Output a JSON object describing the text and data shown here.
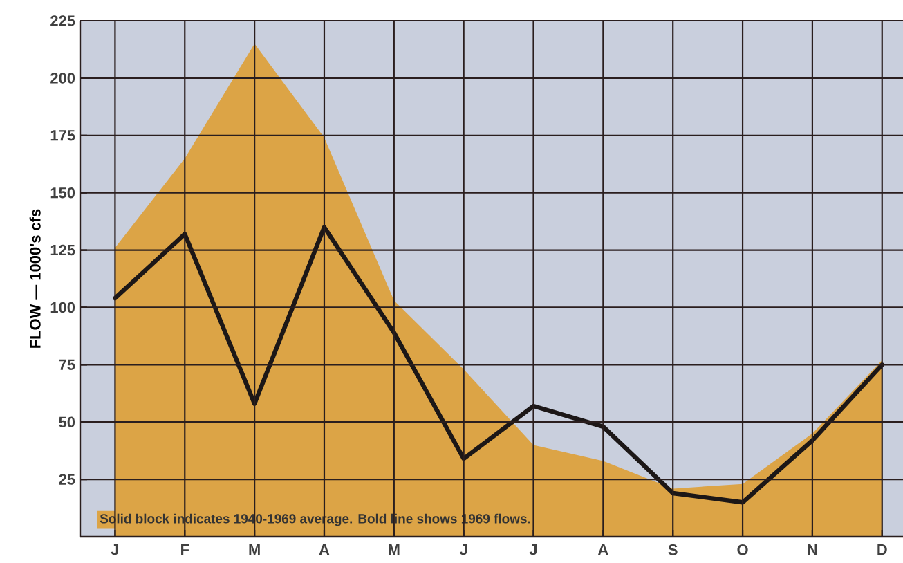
{
  "chart_data": {
    "type": "line",
    "ylabel": "FLOW — 1000's cfs",
    "annotations": [
      "Solid block indicates 1940-1969 average. Bold line shows 1969 flows."
    ],
    "categories": [
      "J",
      "F",
      "M",
      "A",
      "M",
      "J",
      "J",
      "A",
      "S",
      "O",
      "N",
      "D"
    ],
    "ylim": [
      0,
      225
    ],
    "yticks": [
      25,
      50,
      75,
      100,
      125,
      150,
      175,
      200,
      225
    ],
    "grid": true,
    "series": [
      {
        "type": "area",
        "color": "#dca446",
        "values": [
          126,
          165,
          215,
          174,
          103,
          73,
          40,
          33,
          21,
          23,
          45,
          77
        ]
      },
      {
        "color": "#1c1717",
        "values": [
          104,
          132,
          58,
          135,
          89,
          34,
          57,
          48,
          19,
          15,
          42,
          75
        ]
      }
    ]
  }
}
